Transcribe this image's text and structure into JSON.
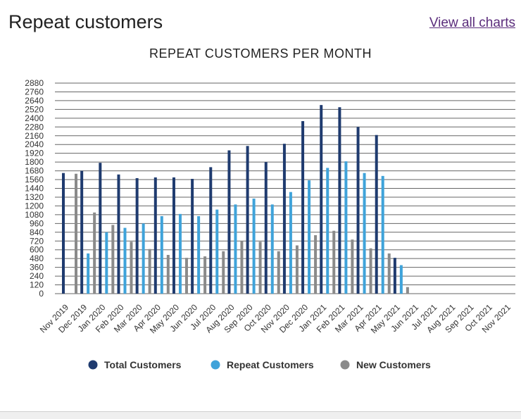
{
  "page": {
    "title": "Repeat customers",
    "view_all_link": "View all charts"
  },
  "colors": {
    "total": "#1f3b6f",
    "repeat": "#3fa3da",
    "new": "#8a8a8a",
    "grid": "#666666",
    "text": "#333333"
  },
  "chart_data": {
    "type": "bar",
    "title": "REPEAT CUSTOMERS PER MONTH",
    "xlabel": "",
    "ylabel": "",
    "ylim": [
      0,
      2880
    ],
    "ytick_step": 120,
    "grid": true,
    "legend_position": "bottom",
    "categories": [
      "Nov 2019",
      "Dec 2019",
      "Jan 2020",
      "Feb 2020",
      "Mar 2020",
      "Apr 2020",
      "May 2020",
      "Jun 2020",
      "Jul 2020",
      "Aug 2020",
      "Sep 2020",
      "Oct 2020",
      "Nov 2020",
      "Dec 2020",
      "Jan 2021",
      "Feb 2021",
      "Mar 2021",
      "Apr 2021",
      "May 2021",
      "Jun 2021",
      "Jul 2021",
      "Aug 2021",
      "Sep 2021",
      "Oct 2021",
      "Nov 2021"
    ],
    "series": [
      {
        "name": "Total Customers",
        "key": "total",
        "values": [
          1650,
          1680,
          1790,
          1630,
          1580,
          1590,
          1590,
          1570,
          1730,
          1960,
          2020,
          1800,
          2050,
          2360,
          2580,
          2550,
          2280,
          2170,
          490,
          0,
          0,
          0,
          0,
          0,
          0
        ]
      },
      {
        "name": "Repeat Customers",
        "key": "repeat",
        "values": [
          0,
          550,
          840,
          900,
          960,
          1060,
          1090,
          1060,
          1150,
          1220,
          1300,
          1220,
          1390,
          1550,
          1720,
          1810,
          1650,
          1610,
          390,
          0,
          0,
          0,
          0,
          0,
          0
        ]
      },
      {
        "name": "New Customers",
        "key": "new",
        "values": [
          1640,
          1110,
          940,
          710,
          610,
          530,
          490,
          510,
          580,
          720,
          710,
          580,
          660,
          800,
          860,
          740,
          620,
          550,
          90,
          0,
          0,
          0,
          0,
          0,
          0
        ]
      }
    ]
  }
}
